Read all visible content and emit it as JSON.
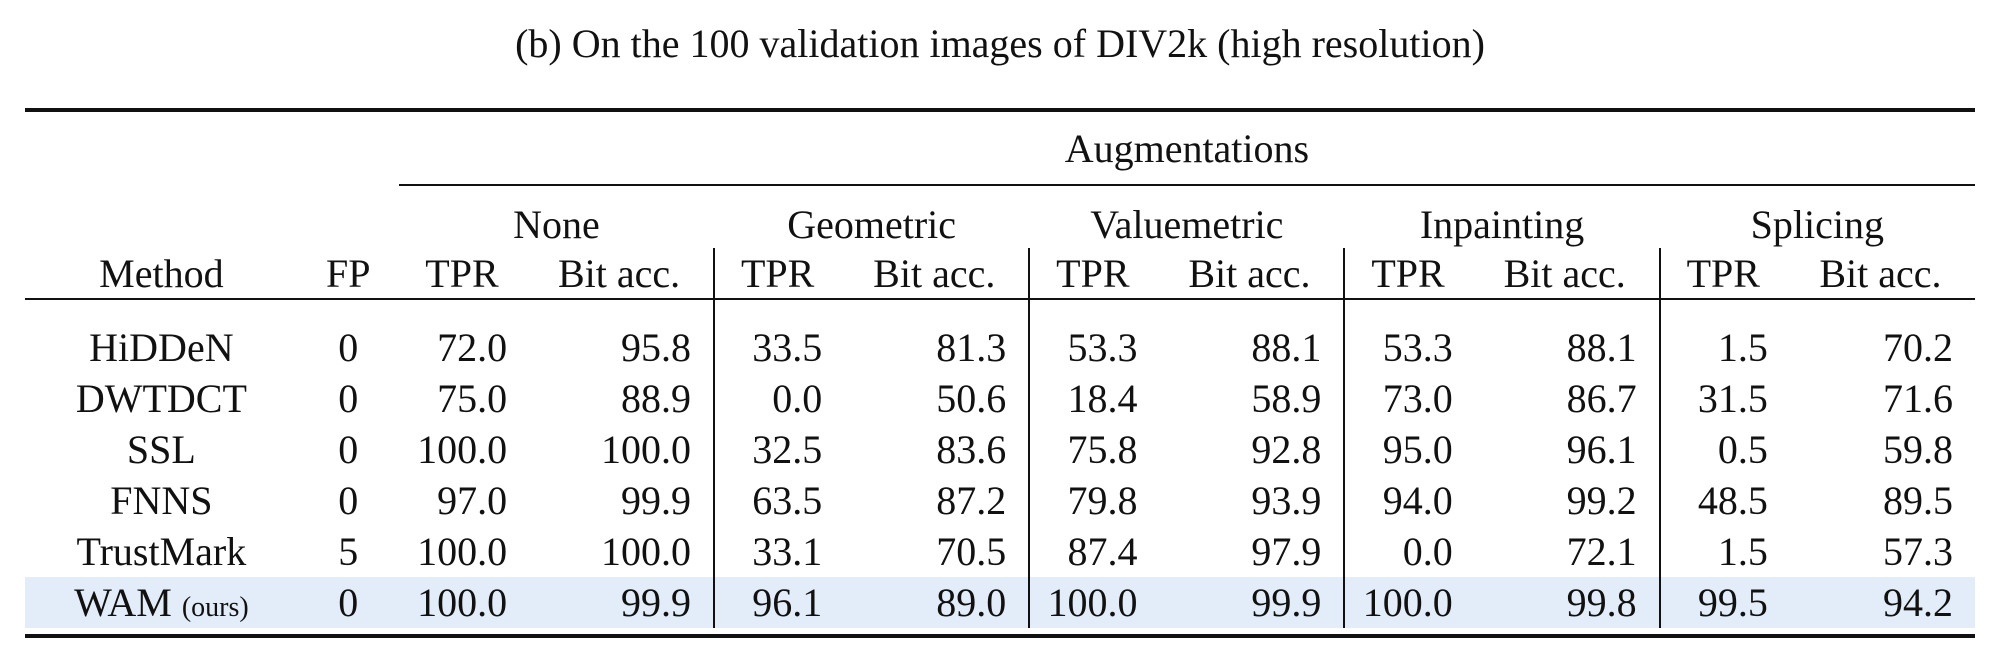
{
  "caption": "(b) On the 100 validation images of DIV2k (high resolution)",
  "header": {
    "super": "Augmentations",
    "method": "Method",
    "fp": "FP",
    "groups": [
      "None",
      "Geometric",
      "Valuemetric",
      "Inpainting",
      "Splicing"
    ],
    "tpr": "TPR",
    "bit": "Bit acc."
  },
  "rows": [
    {
      "method": "HiDDeN",
      "tag": "",
      "fp": "0",
      "values": [
        "72.0",
        "95.8",
        "33.5",
        "81.3",
        "53.3",
        "88.1",
        "53.3",
        "88.1",
        "1.5",
        "70.2"
      ]
    },
    {
      "method": "DWTDCT",
      "tag": "",
      "fp": "0",
      "values": [
        "75.0",
        "88.9",
        "0.0",
        "50.6",
        "18.4",
        "58.9",
        "73.0",
        "86.7",
        "31.5",
        "71.6"
      ]
    },
    {
      "method": "SSL",
      "tag": "",
      "fp": "0",
      "values": [
        "100.0",
        "100.0",
        "32.5",
        "83.6",
        "75.8",
        "92.8",
        "95.0",
        "96.1",
        "0.5",
        "59.8"
      ]
    },
    {
      "method": "FNNS",
      "tag": "",
      "fp": "0",
      "values": [
        "97.0",
        "99.9",
        "63.5",
        "87.2",
        "79.8",
        "93.9",
        "94.0",
        "99.2",
        "48.5",
        "89.5"
      ]
    },
    {
      "method": "TrustMark",
      "tag": "",
      "fp": "5",
      "values": [
        "100.0",
        "100.0",
        "33.1",
        "70.5",
        "87.4",
        "97.9",
        "0.0",
        "72.1",
        "1.5",
        "57.3"
      ]
    },
    {
      "method": "WAM",
      "tag": "(ours)",
      "fp": "0",
      "values": [
        "100.0",
        "99.9",
        "96.1",
        "89.0",
        "100.0",
        "99.9",
        "100.0",
        "99.8",
        "99.5",
        "94.2"
      ]
    }
  ],
  "highlight_row_color": "#e2edf9"
}
